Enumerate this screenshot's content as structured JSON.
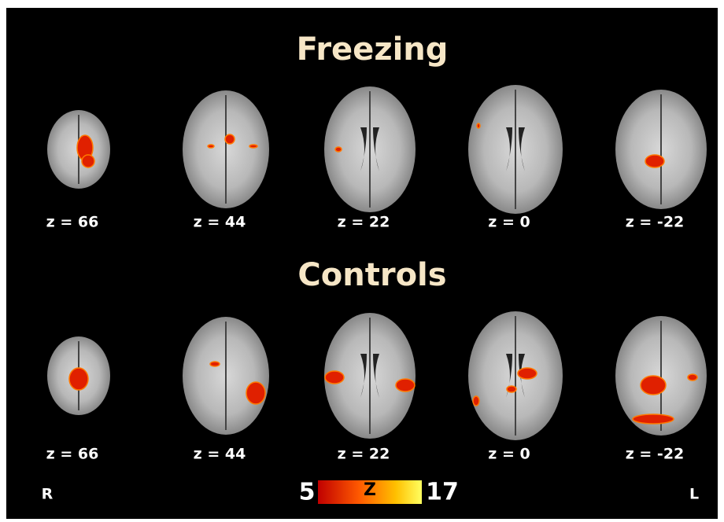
{
  "panels": [
    {
      "title": "Freezing",
      "slices": [
        "z = 66",
        "z = 44",
        "z = 22",
        "z = 0",
        "z = -22"
      ]
    },
    {
      "title": "Controls",
      "slices": [
        "z = 66",
        "z = 44",
        "z = 22",
        "z = 0",
        "z = -22"
      ]
    }
  ],
  "colorbar": {
    "min": 5,
    "label": "Z",
    "max": 17
  },
  "orientation": {
    "left": "R",
    "right": "L"
  }
}
